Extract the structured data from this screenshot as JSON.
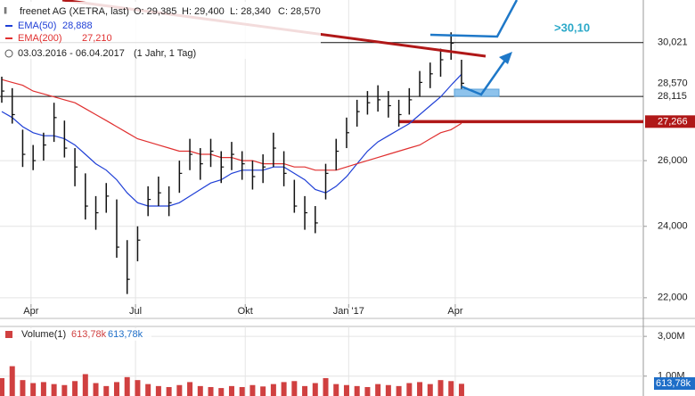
{
  "chart_data": {
    "type": "ohlc",
    "title": "freenet AG (XETRA, last)",
    "ohlc_labels": [
      "O: 29,385",
      "H: 29,400",
      "L: 28,340",
      "C: 28,570"
    ],
    "period": "03.03.2016 - 06.04.2017",
    "period_note": "(1 Jahr, 1 Tag)",
    "annotation": ">30,10",
    "color": "#111111",
    "log_scale": true,
    "grid": true,
    "values": [
      28.3,
      27.5,
      26.2,
      26.0,
      26.5,
      27.4,
      26.4,
      25.8,
      24.6,
      24.4,
      24.9,
      23.4,
      22.5,
      23.6,
      24.8,
      25.0,
      24.7,
      25.6,
      26.2,
      25.9,
      26.3,
      25.8,
      26.2,
      25.9,
      25.5,
      25.8,
      26.4,
      25.6,
      24.6,
      24.4,
      24.1,
      25.6,
      26.3,
      26.9,
      27.6,
      27.9,
      28.0,
      27.8,
      27.5,
      28.0,
      28.6,
      28.9,
      29.4,
      30.0,
      28.57
    ],
    "high": [
      28.8,
      28.4,
      27.0,
      26.5,
      26.9,
      27.9,
      27.3,
      26.4,
      25.6,
      24.9,
      25.3,
      24.8,
      23.6,
      24.0,
      25.2,
      25.5,
      25.2,
      26.0,
      26.7,
      26.4,
      26.7,
      26.3,
      26.6,
      26.3,
      26.0,
      26.2,
      26.9,
      26.3,
      25.4,
      24.9,
      24.6,
      25.9,
      26.7,
      27.4,
      28.0,
      28.3,
      28.5,
      28.3,
      28.0,
      28.4,
      29.0,
      29.3,
      29.8,
      30.4,
      29.4
    ],
    "low": [
      27.9,
      27.2,
      25.8,
      25.7,
      26.0,
      26.6,
      26.1,
      25.2,
      24.2,
      23.9,
      24.4,
      23.1,
      22.1,
      23.0,
      24.3,
      24.6,
      24.3,
      25.0,
      25.7,
      25.4,
      25.8,
      25.3,
      25.7,
      25.4,
      25.1,
      25.3,
      25.8,
      25.2,
      24.4,
      23.9,
      23.8,
      24.8,
      25.7,
      26.4,
      27.1,
      27.5,
      27.6,
      27.4,
      27.1,
      27.5,
      28.1,
      28.4,
      28.8,
      29.4,
      28.34
    ],
    "series": [
      {
        "name": "EMA(50)",
        "legend_value": "28,888",
        "color": "#1f3fd6",
        "values": [
          27.6,
          27.4,
          27.1,
          26.9,
          26.8,
          26.8,
          26.7,
          26.5,
          26.2,
          25.9,
          25.7,
          25.4,
          25.0,
          24.7,
          24.6,
          24.6,
          24.6,
          24.7,
          24.9,
          25.1,
          25.3,
          25.4,
          25.6,
          25.7,
          25.7,
          25.7,
          25.8,
          25.8,
          25.6,
          25.4,
          25.1,
          25.0,
          25.2,
          25.5,
          25.9,
          26.3,
          26.6,
          26.8,
          27.0,
          27.2,
          27.5,
          27.8,
          28.1,
          28.5,
          28.888
        ]
      },
      {
        "name": "EMA(200)",
        "legend_value": "27,210",
        "color": "#e03030",
        "values": [
          28.7,
          28.6,
          28.5,
          28.3,
          28.2,
          28.1,
          28.0,
          27.9,
          27.7,
          27.5,
          27.3,
          27.1,
          26.9,
          26.7,
          26.6,
          26.5,
          26.4,
          26.3,
          26.3,
          26.2,
          26.2,
          26.1,
          26.1,
          26.0,
          26.0,
          25.9,
          25.9,
          25.9,
          25.8,
          25.8,
          25.7,
          25.7,
          25.7,
          25.8,
          25.9,
          26.0,
          26.1,
          26.2,
          26.3,
          26.4,
          26.5,
          26.7,
          26.9,
          27.0,
          27.21
        ]
      }
    ],
    "ylim": [
      21.5,
      31.62
    ],
    "yticks": [
      {
        "value": 22,
        "label": "22,000"
      },
      {
        "value": 24,
        "label": "24,000"
      },
      {
        "value": 26,
        "label": "26,000"
      }
    ],
    "price_tags": [
      {
        "value": 30.021,
        "label": "30,021",
        "line": true,
        "color": "#111111"
      },
      {
        "value": 28.57,
        "label": "28,570",
        "line": false,
        "color": "#111111"
      },
      {
        "value": 28.115,
        "label": "28,115",
        "line": true,
        "color": "#111111"
      },
      {
        "value": 27.266,
        "label": "27,266",
        "line": true,
        "color": "#b01818"
      }
    ],
    "xlim": [
      -0.17,
      61.4
    ],
    "xticks": [
      {
        "value": 2.8,
        "label": "Apr"
      },
      {
        "value": 12.8,
        "label": "Jul"
      },
      {
        "value": 23.3,
        "label": "Okt"
      },
      {
        "value": 33.2,
        "label": "Jan '17"
      },
      {
        "value": 43.4,
        "label": "Apr"
      }
    ],
    "volume": {
      "name": "Volume(1)",
      "legend_values": [
        "613,78k",
        "613,78k"
      ],
      "tag": "613,78k",
      "color": "#d04040",
      "values": [
        900000,
        1500000,
        800000,
        650000,
        700000,
        600000,
        550000,
        750000,
        1100000,
        650000,
        500000,
        700000,
        950000,
        800000,
        600000,
        500000,
        450000,
        550000,
        700000,
        500000,
        450000,
        400000,
        500000,
        450000,
        550000,
        480000,
        600000,
        700000,
        750000,
        500000,
        650000,
        900000,
        600000,
        550000,
        500000,
        450000,
        600000,
        550000,
        500000,
        650000,
        700000,
        600000,
        800000,
        750000,
        613780
      ],
      "ylim": [
        0,
        3500000
      ],
      "yticks": [
        {
          "value": 1000000,
          "label": "1,00M"
        },
        {
          "value": 3000000,
          "label": "3,00M"
        }
      ]
    }
  }
}
